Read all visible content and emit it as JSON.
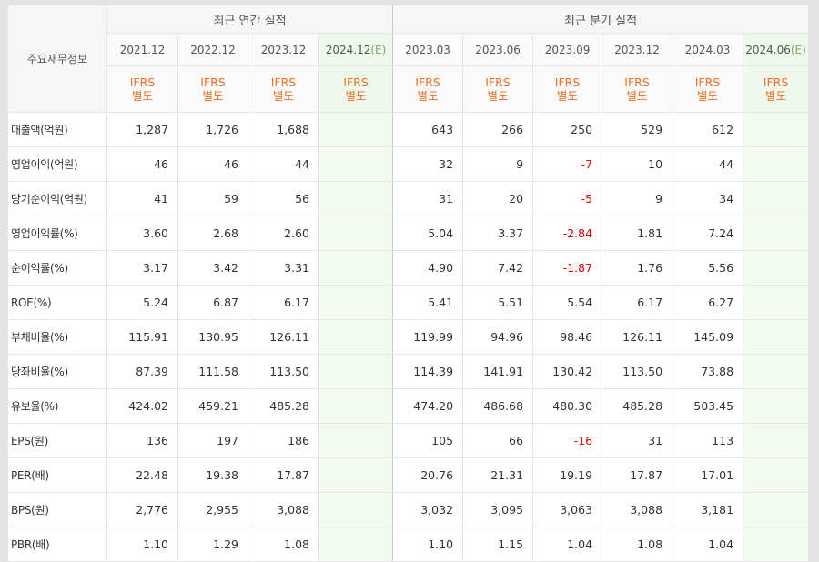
{
  "header": {
    "corner_label": "주요재무정보",
    "annual_group": "최근 연간 실적",
    "quarter_group": "최근 분기 실적",
    "accounting_line1": "IFRS",
    "accounting_line2": "별도",
    "periods": [
      {
        "label": "2021.12",
        "estimate": false
      },
      {
        "label": "2022.12",
        "estimate": false
      },
      {
        "label": "2023.12",
        "estimate": false
      },
      {
        "label": "2024.12",
        "suffix": "(E)",
        "estimate": true
      },
      {
        "label": "2023.03",
        "estimate": false
      },
      {
        "label": "2023.06",
        "estimate": false
      },
      {
        "label": "2023.09",
        "estimate": false
      },
      {
        "label": "2023.12",
        "estimate": false
      },
      {
        "label": "2024.03",
        "estimate": false
      },
      {
        "label": "2024.06",
        "suffix": "(E)",
        "estimate": true
      }
    ]
  },
  "rows": [
    {
      "label": "매출액(억원)",
      "values": [
        "1,287",
        "1,726",
        "1,688",
        "",
        "643",
        "266",
        "250",
        "529",
        "612",
        ""
      ]
    },
    {
      "label": "영업이익(억원)",
      "values": [
        "46",
        "46",
        "44",
        "",
        "32",
        "9",
        "-7",
        "10",
        "44",
        ""
      ]
    },
    {
      "label": "당기순이익(억원)",
      "values": [
        "41",
        "59",
        "56",
        "",
        "31",
        "20",
        "-5",
        "9",
        "34",
        ""
      ]
    },
    {
      "label": "영업이익률(%)",
      "values": [
        "3.60",
        "2.68",
        "2.60",
        "",
        "5.04",
        "3.37",
        "-2.84",
        "1.81",
        "7.24",
        ""
      ]
    },
    {
      "label": "순이익률(%)",
      "values": [
        "3.17",
        "3.42",
        "3.31",
        "",
        "4.90",
        "7.42",
        "-1.87",
        "1.76",
        "5.56",
        ""
      ]
    },
    {
      "label": "ROE(%)",
      "values": [
        "5.24",
        "6.87",
        "6.17",
        "",
        "5.41",
        "5.51",
        "5.54",
        "6.17",
        "6.27",
        ""
      ]
    },
    {
      "label": "부채비율(%)",
      "values": [
        "115.91",
        "130.95",
        "126.11",
        "",
        "119.99",
        "94.96",
        "98.46",
        "126.11",
        "145.09",
        ""
      ]
    },
    {
      "label": "당좌비율(%)",
      "values": [
        "87.39",
        "111.58",
        "113.50",
        "",
        "114.39",
        "141.91",
        "130.42",
        "113.50",
        "73.88",
        ""
      ]
    },
    {
      "label": "유보율(%)",
      "values": [
        "424.02",
        "459.21",
        "485.28",
        "",
        "474.20",
        "486.68",
        "480.30",
        "485.28",
        "503.45",
        ""
      ]
    },
    {
      "label": "EPS(원)",
      "values": [
        "136",
        "197",
        "186",
        "",
        "105",
        "66",
        "-16",
        "31",
        "113",
        ""
      ]
    },
    {
      "label": "PER(배)",
      "values": [
        "22.48",
        "19.38",
        "17.87",
        "",
        "20.76",
        "21.31",
        "19.19",
        "17.87",
        "17.01",
        ""
      ]
    },
    {
      "label": "BPS(원)",
      "values": [
        "2,776",
        "2,955",
        "3,088",
        "",
        "3,032",
        "3,095",
        "3,063",
        "3,088",
        "3,181",
        ""
      ]
    },
    {
      "label": "PBR(배)",
      "values": [
        "1.10",
        "1.29",
        "1.08",
        "",
        "1.10",
        "1.15",
        "1.04",
        "1.08",
        "1.04",
        ""
      ]
    }
  ],
  "colors": {
    "negative": "#d80000",
    "accounting": "#f26d21",
    "estimate_bg": "#eef8ec"
  }
}
